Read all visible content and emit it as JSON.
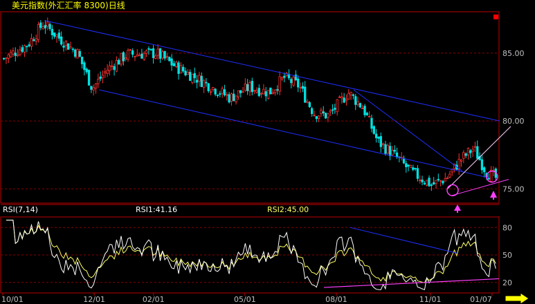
{
  "title": "美元指数(外汇汇率 8300)日线",
  "rsi_panel": {
    "name": "RSI(7,14)",
    "rsi1": "RSI1:41.16",
    "rsi2": "RSI2:45.00",
    "ticks": [
      "80",
      "50",
      "20"
    ]
  },
  "colors": {
    "background": "#000000",
    "frame": "#c00000",
    "grid": "#8b0000",
    "up": "#ff3030",
    "down": "#00e0e0",
    "trend": "#1f2fff",
    "support": "#ff40ff",
    "rsi1": "#ffffff",
    "rsi2": "#ffff66",
    "axis_text": "#c0c0c0",
    "title_text": "#ffff00"
  },
  "chart_data": [
    {
      "type": "candlestick",
      "title": "美元指数(外汇汇率 8300)日线",
      "ylim": [
        74.0,
        88.0
      ],
      "y_ticks": [
        "85.00",
        "80.00",
        "75.00"
      ],
      "x_ticks": [
        "10/01",
        "12/01",
        "02/01",
        "05/01",
        "08/01",
        "11/01",
        "01/07"
      ],
      "trend_points": [
        {
          "t": 0,
          "v": 84.6
        },
        {
          "t": 0.05,
          "v": 85.7
        },
        {
          "t": 0.08,
          "v": 87.2
        },
        {
          "t": 0.11,
          "v": 86.2
        },
        {
          "t": 0.15,
          "v": 85.0
        },
        {
          "t": 0.18,
          "v": 82.4
        },
        {
          "t": 0.21,
          "v": 83.8
        },
        {
          "t": 0.25,
          "v": 84.9
        },
        {
          "t": 0.31,
          "v": 85.0
        },
        {
          "t": 0.35,
          "v": 84.0
        },
        {
          "t": 0.4,
          "v": 83.0
        },
        {
          "t": 0.46,
          "v": 81.7
        },
        {
          "t": 0.5,
          "v": 82.5
        },
        {
          "t": 0.54,
          "v": 82.1
        },
        {
          "t": 0.57,
          "v": 83.2
        },
        {
          "t": 0.6,
          "v": 82.6
        },
        {
          "t": 0.63,
          "v": 80.6
        },
        {
          "t": 0.66,
          "v": 80.4
        },
        {
          "t": 0.7,
          "v": 82.1
        },
        {
          "t": 0.73,
          "v": 81.0
        },
        {
          "t": 0.76,
          "v": 78.5
        },
        {
          "t": 0.79,
          "v": 77.6
        },
        {
          "t": 0.83,
          "v": 76.2
        },
        {
          "t": 0.87,
          "v": 75.3
        },
        {
          "t": 0.9,
          "v": 75.8
        },
        {
          "t": 0.93,
          "v": 77.2
        },
        {
          "t": 0.955,
          "v": 78.0
        },
        {
          "t": 0.98,
          "v": 76.3
        },
        {
          "t": 1.0,
          "v": 75.8
        }
      ]
    },
    {
      "type": "line",
      "title": "RSI(7,14)",
      "ylim": [
        10,
        90
      ],
      "y_ticks": [
        80,
        50,
        20
      ],
      "series": [
        {
          "name": "RSI1",
          "last": 41.16
        },
        {
          "name": "RSI2",
          "last": 45.0
        }
      ]
    }
  ]
}
